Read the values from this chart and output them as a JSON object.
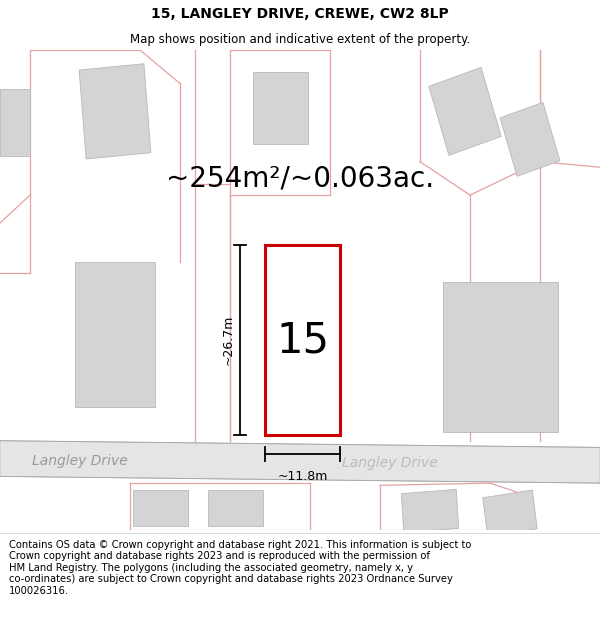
{
  "title": "15, LANGLEY DRIVE, CREWE, CW2 8LP",
  "subtitle": "Map shows position and indicative extent of the property.",
  "area_label": "~254m²/~0.063ac.",
  "property_number": "15",
  "dim_height": "~26.7m",
  "dim_width": "~11.8m",
  "street_name_left": "Langley Drive",
  "street_name_right": "Langley Drive",
  "footer": "Contains OS data © Crown copyright and database right 2021. This information is subject to\nCrown copyright and database rights 2023 and is reproduced with the permission of\nHM Land Registry. The polygons (including the associated geometry, namely x, y\nco-ordinates) are subject to Crown copyright and database rights 2023 Ordnance Survey\n100026316.",
  "bg_color": "#f8f8f8",
  "map_bg": "#ffffff",
  "road_fill": "#e5e5e5",
  "building_fill": "#d4d4d4",
  "building_edge": "#b8b8b8",
  "pink_line": "#e8a0a0",
  "red_outline": "#cc0000",
  "title_fontsize": 10,
  "subtitle_fontsize": 8.5,
  "area_fontsize": 20,
  "number_fontsize": 30,
  "dim_fontsize": 9,
  "street_fontsize": 10,
  "footer_fontsize": 7.2
}
